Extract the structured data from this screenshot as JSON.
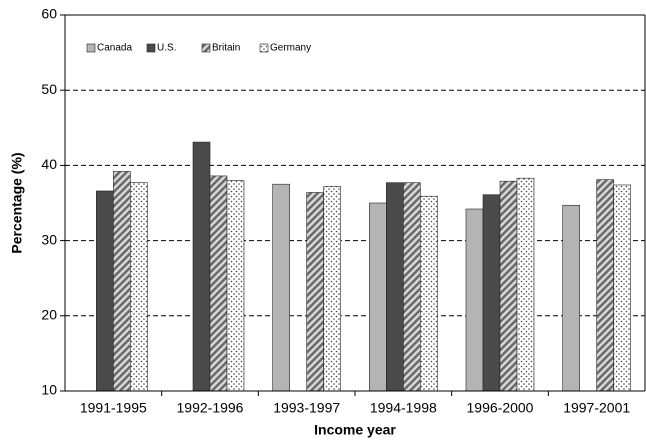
{
  "chart_data": {
    "type": "bar",
    "x_label": "Income year",
    "y_label": "Percentage (%)",
    "categories": [
      "1991-1995",
      "1992-1996",
      "1993-1997",
      "1994-1998",
      "1996-2000",
      "1997-2001"
    ],
    "series": [
      {
        "name": "Canada",
        "color": "#b4b4b4",
        "pattern": "solid",
        "values": [
          null,
          null,
          37.5,
          35.0,
          34.2,
          34.7
        ]
      },
      {
        "name": "U.S.",
        "color": "#4a4a4a",
        "pattern": "solid",
        "values": [
          36.6,
          43.1,
          null,
          37.7,
          36.1,
          null
        ]
      },
      {
        "name": "Britain",
        "color": "#8a8a8a",
        "pattern": "hatch",
        "values": [
          39.2,
          38.6,
          36.4,
          37.7,
          37.9,
          38.1
        ]
      },
      {
        "name": "Germany",
        "color": "#ffffff",
        "pattern": "dots",
        "values": [
          37.7,
          38.0,
          37.2,
          35.9,
          38.3,
          37.4
        ]
      }
    ],
    "ylim": [
      10,
      60
    ],
    "yticks": [
      10,
      20,
      30,
      40,
      50,
      60
    ],
    "grid": true,
    "legend": "upper left"
  }
}
